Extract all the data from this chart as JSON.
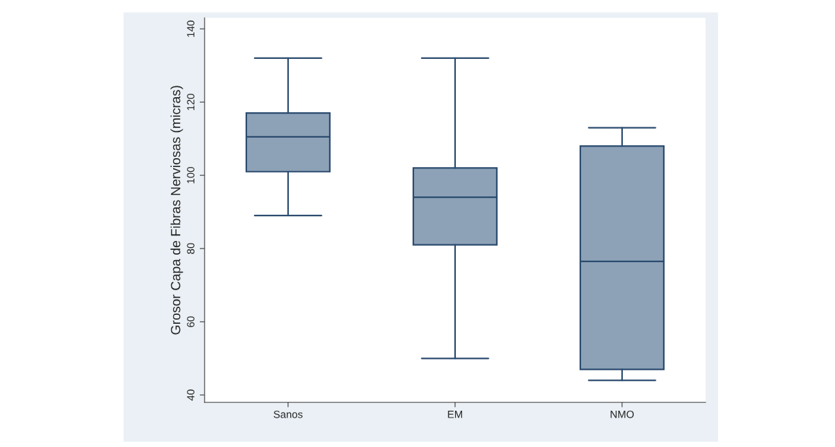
{
  "chart_data": {
    "type": "box",
    "ylabel": "Grosor Capa de Fibras Nerviosas (micras)",
    "categories": [
      "Sanos",
      "EM",
      "NMO"
    ],
    "boxes": [
      {
        "low": 89,
        "q1": 101,
        "median": 110.5,
        "q3": 117,
        "high": 132
      },
      {
        "low": 50,
        "q1": 81,
        "median": 94,
        "q3": 102,
        "high": 132
      },
      {
        "low": 44,
        "q1": 47,
        "median": 76.5,
        "q3": 108,
        "high": 113
      }
    ],
    "color": "#8da2b7",
    "ylim": [
      38,
      143
    ],
    "yticks": [
      40,
      60,
      80,
      100,
      120,
      140
    ],
    "grid": false,
    "legend": false
  }
}
